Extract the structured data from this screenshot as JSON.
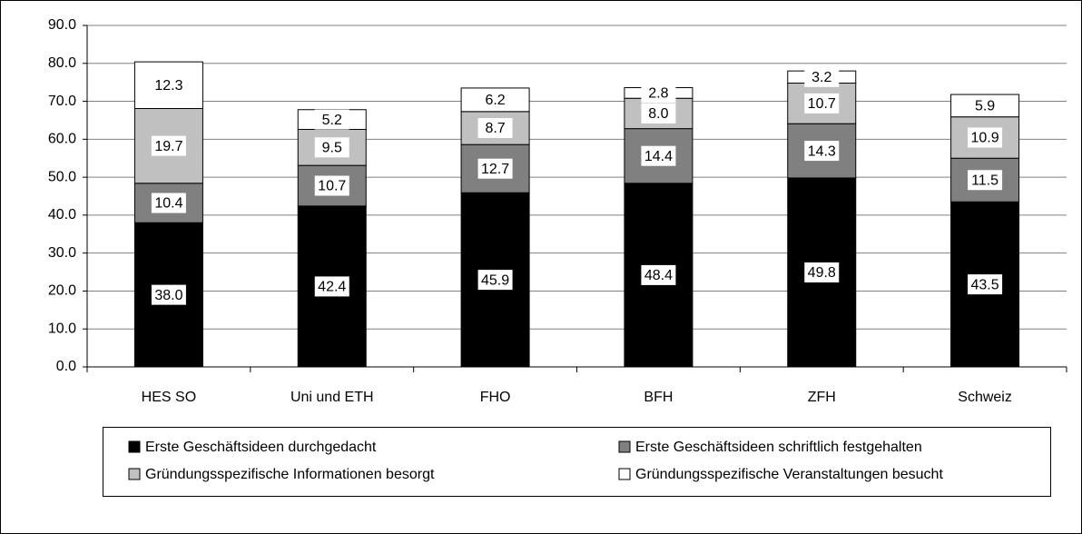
{
  "chart_data": {
    "type": "stacked-bar",
    "categories": [
      "HES SO",
      "Uni und ETH",
      "FHO",
      "BFH",
      "ZFH",
      "Schweiz"
    ],
    "series": [
      {
        "name": "Erste Geschäftsideen durchgedacht",
        "color": "#000000",
        "values": [
          38.0,
          42.4,
          45.9,
          48.4,
          49.8,
          43.5
        ],
        "value_labels": [
          "38.0",
          "42.4",
          "45.9",
          "48.4",
          "49.8",
          "43.5"
        ]
      },
      {
        "name": "Erste Geschäftsideen schriftlich festgehalten",
        "color": "#808080",
        "values": [
          10.4,
          10.7,
          12.7,
          14.4,
          14.3,
          11.5
        ],
        "value_labels": [
          "10.4",
          "10.7",
          "12.7",
          "14.4",
          "14.3",
          "11.5"
        ]
      },
      {
        "name": "Gründungsspezifische Informationen besorgt",
        "color": "#c0c0c0",
        "values": [
          19.7,
          9.5,
          8.7,
          8.0,
          10.7,
          10.9
        ],
        "value_labels": [
          "19.7",
          "9.5",
          "8.7",
          "8.0",
          "10.7",
          "10.9"
        ]
      },
      {
        "name": "Gründungsspezifische Veranstaltungen besucht",
        "color": "#ffffff",
        "values": [
          12.3,
          5.2,
          6.2,
          2.8,
          3.2,
          5.9
        ],
        "value_labels": [
          "12.3",
          "5.2",
          "6.2",
          "2.8",
          "3.2",
          "5.9"
        ]
      }
    ],
    "ylim": [
      0,
      90
    ],
    "yticks": [
      {
        "value": 0,
        "label": "0.0"
      },
      {
        "value": 10,
        "label": "10.0"
      },
      {
        "value": 20,
        "label": "20.0"
      },
      {
        "value": 30,
        "label": "30.0"
      },
      {
        "value": 40,
        "label": "40.0"
      },
      {
        "value": 50,
        "label": "50.0"
      },
      {
        "value": 60,
        "label": "60.0"
      },
      {
        "value": 70,
        "label": "70.0"
      },
      {
        "value": 80,
        "label": "80.0"
      },
      {
        "value": 90,
        "label": "90.0"
      }
    ],
    "grid": true,
    "legend": "bottom"
  }
}
